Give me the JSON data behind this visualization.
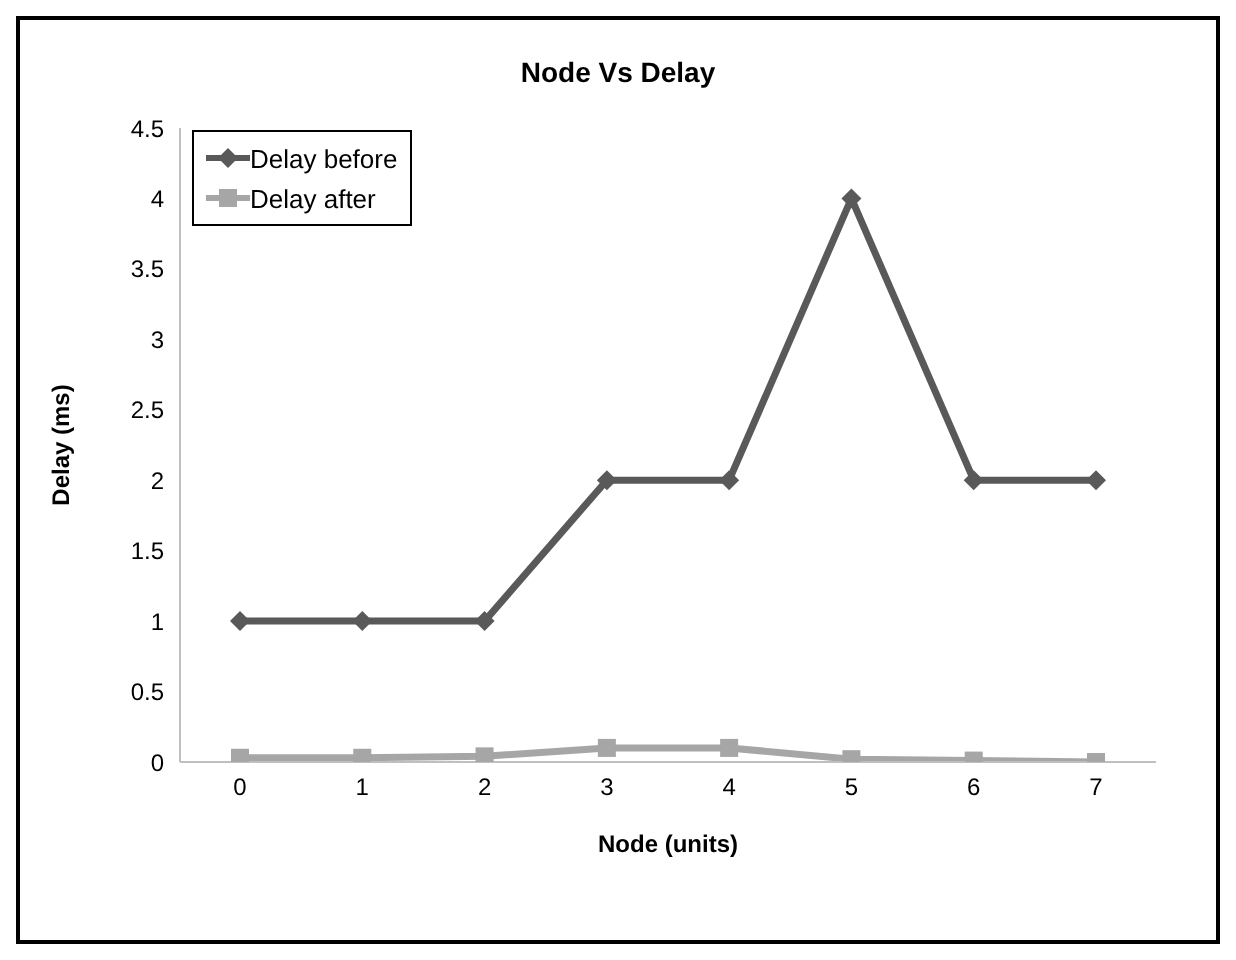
{
  "chart_data": {
    "type": "line",
    "title": "Node Vs Delay",
    "xlabel": "Node (units)",
    "ylabel": "Delay (ms)",
    "categories": [
      "0",
      "1",
      "2",
      "3",
      "4",
      "5",
      "6",
      "7"
    ],
    "series": [
      {
        "name": "Delay before",
        "color": "#595959",
        "marker": "diamond",
        "values": [
          1,
          1,
          1,
          2,
          2,
          4,
          2,
          2
        ]
      },
      {
        "name": "Delay after",
        "color": "#a6a6a6",
        "marker": "square",
        "values": [
          0.03,
          0.03,
          0.04,
          0.1,
          0.1,
          0.02,
          0.01,
          0
        ]
      }
    ],
    "ylim": [
      0,
      4.5
    ],
    "yticks": [
      0,
      0.5,
      1,
      1.5,
      2,
      2.5,
      3,
      3.5,
      4,
      4.5
    ],
    "grid": false,
    "legend": "top left",
    "line_style": "solid"
  }
}
